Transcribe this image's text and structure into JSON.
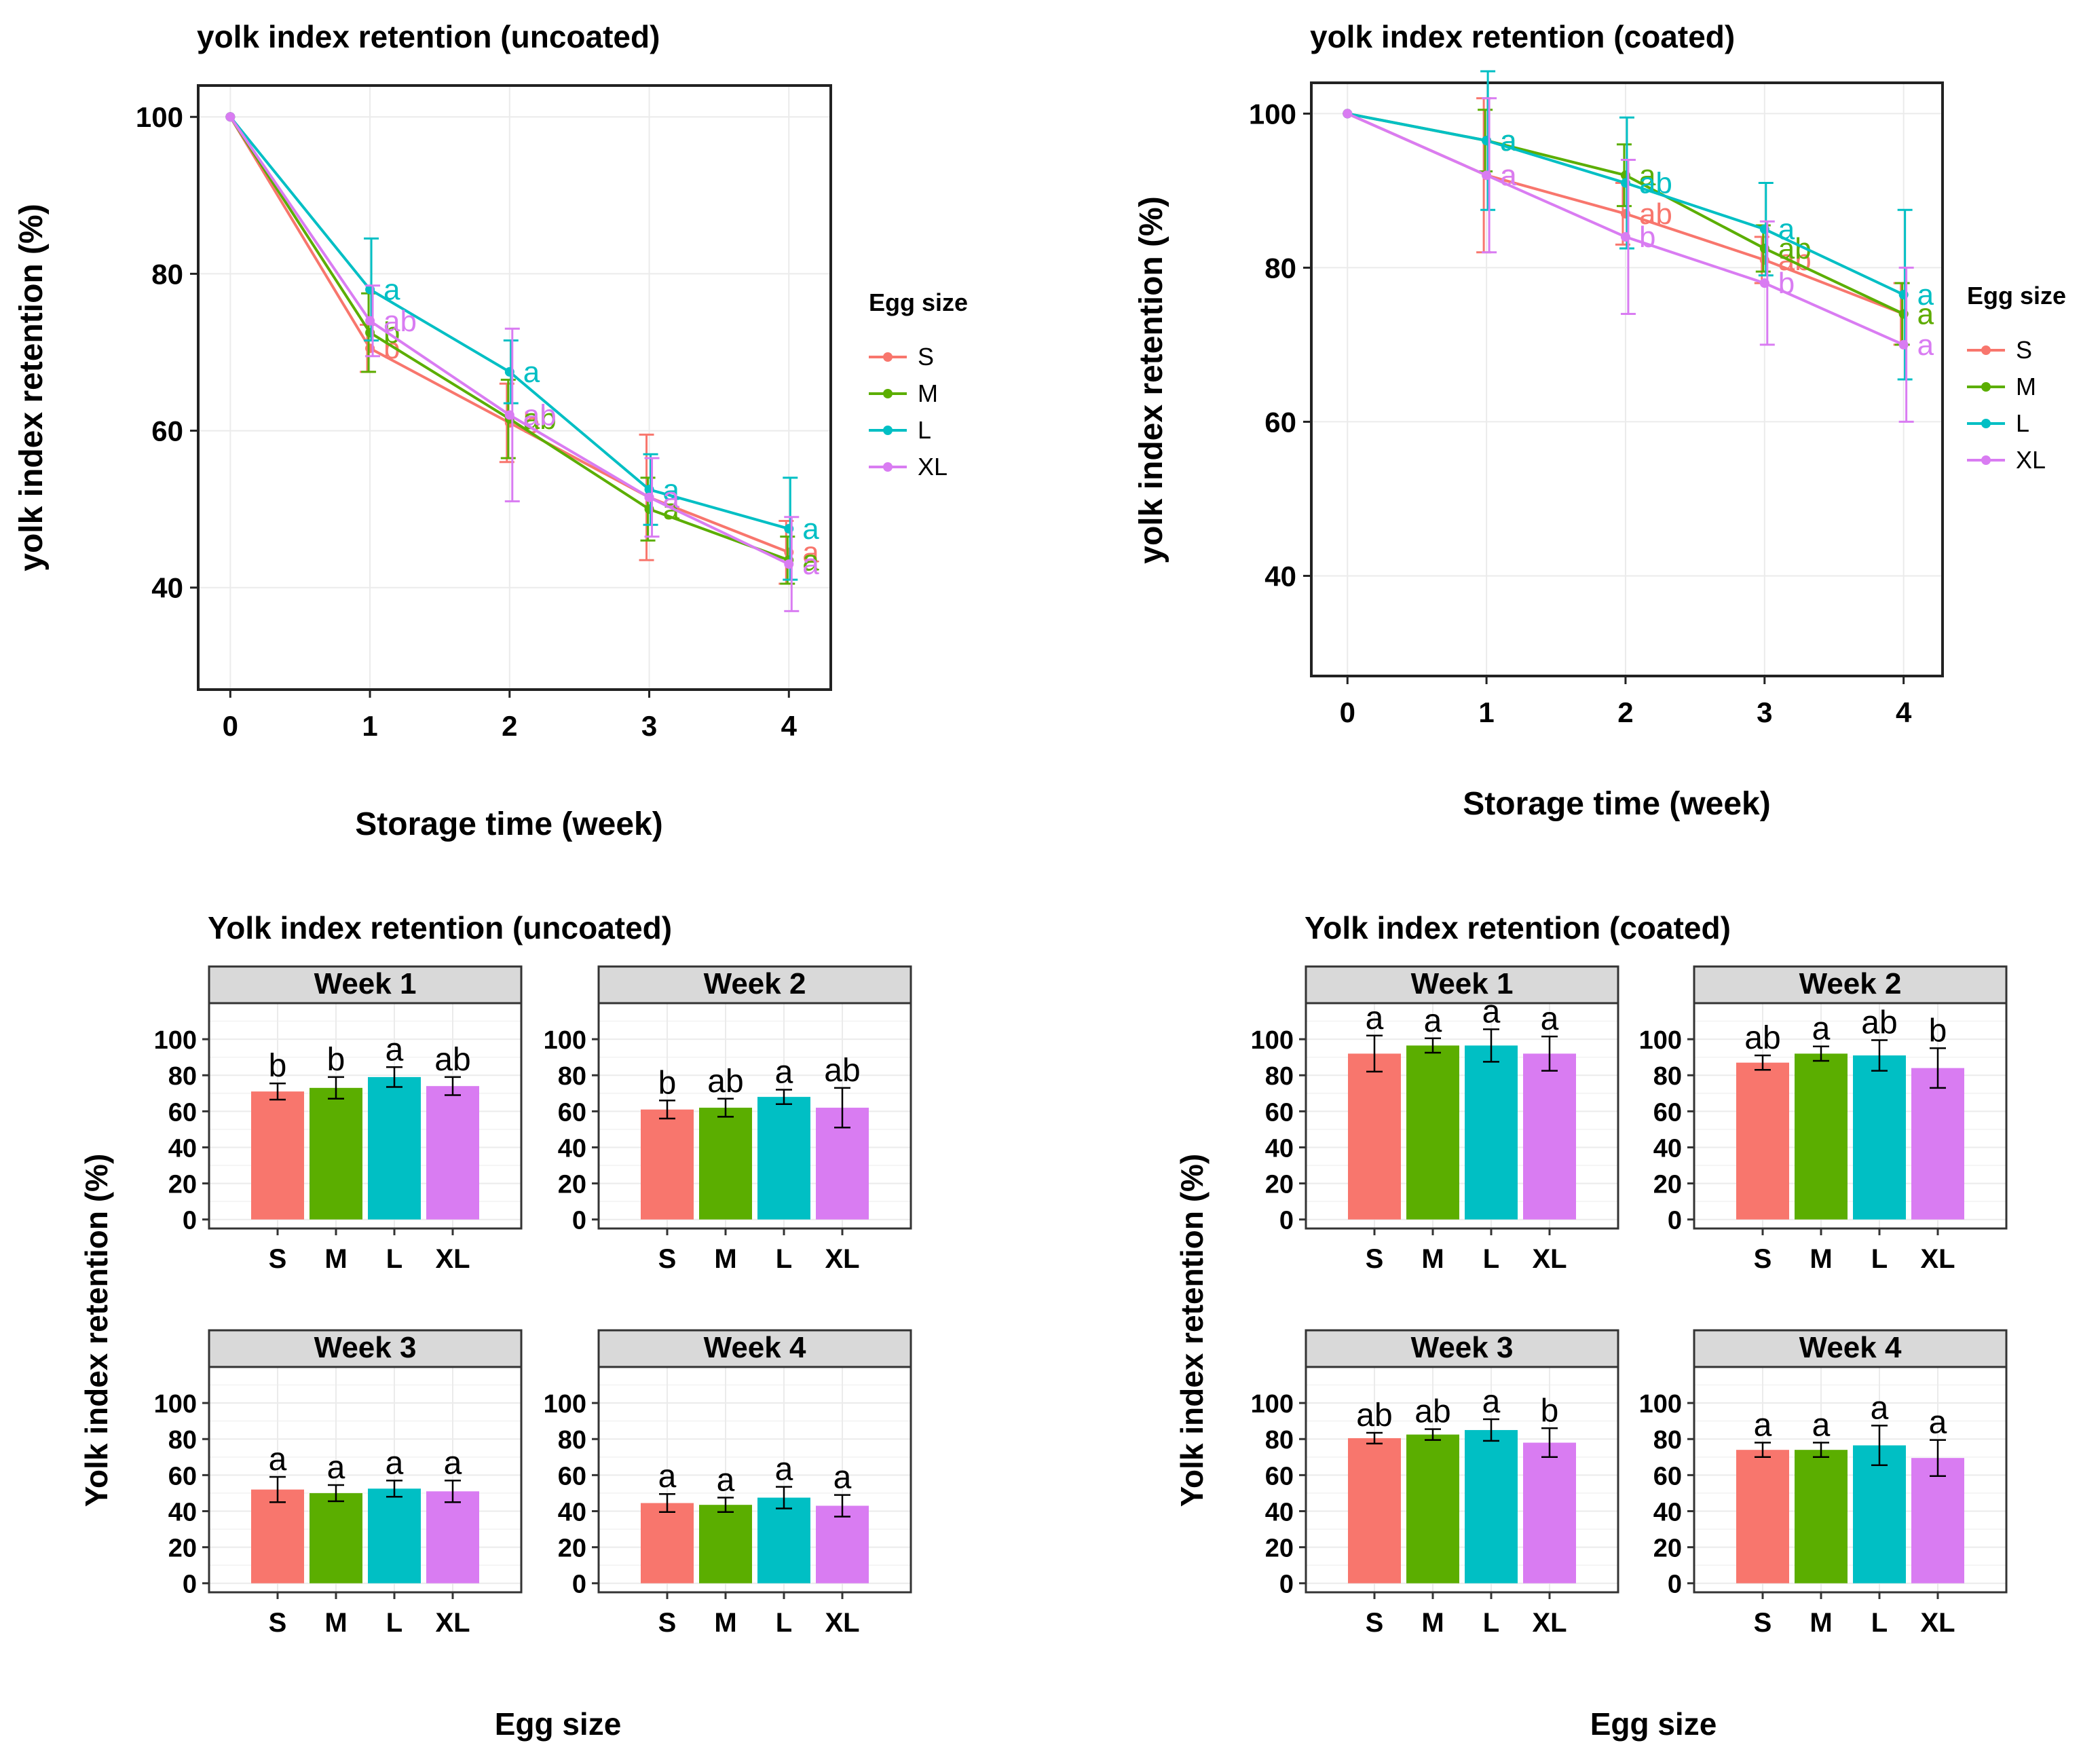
{
  "colors": {
    "S": "#F8766D",
    "M": "#5BAE00",
    "L": "#00BFC4",
    "XL": "#D97CF2",
    "strip": "#D9D9D9",
    "grid": "#EBEBEB"
  },
  "chart_data": [
    {
      "id": "line-uncoated",
      "type": "line",
      "title": "yolk index retention (uncoated)",
      "xlabel": "Storage time (week)",
      "ylabel": "yolk index retention (%)",
      "x": [
        0,
        1,
        2,
        3,
        4
      ],
      "x_ticks": [
        "0",
        "1",
        "2",
        "3",
        "4"
      ],
      "y_ticks": [
        "40",
        "60",
        "80",
        "100"
      ],
      "xlim": [
        -0.23,
        4.3
      ],
      "ylim": [
        27,
        104
      ],
      "legend_title": "Egg size",
      "series": [
        {
          "name": "S",
          "color": "#F8766D",
          "values": [
            100,
            70.5,
            61,
            51.5,
            44.5
          ],
          "err": [
            0,
            3,
            5,
            8,
            4
          ],
          "labels": [
            "",
            "b",
            "b",
            "a",
            "a"
          ]
        },
        {
          "name": "M",
          "color": "#5BAE00",
          "values": [
            100,
            72.5,
            61.5,
            50,
            43.5
          ],
          "err": [
            0,
            5,
            5,
            4,
            3
          ],
          "labels": [
            "",
            "b",
            "ab",
            "a",
            "a"
          ]
        },
        {
          "name": "L",
          "color": "#00BFC4",
          "values": [
            100,
            78,
            67.5,
            52.5,
            47.5
          ],
          "err": [
            0,
            6.5,
            4,
            4.5,
            6.5
          ],
          "labels": [
            "",
            "a",
            "a",
            "a",
            "a"
          ]
        },
        {
          "name": "XL",
          "color": "#D97CF2",
          "values": [
            100,
            74,
            62,
            51.5,
            43
          ],
          "err": [
            0,
            4.5,
            11,
            5,
            6
          ],
          "labels": [
            "",
            "ab",
            "ab",
            "a",
            "a"
          ]
        }
      ]
    },
    {
      "id": "line-coated",
      "type": "line",
      "title": "yolk index retention (coated)",
      "xlabel": "Storage time (week)",
      "ylabel": "yolk index retention (%)",
      "x": [
        0,
        1,
        2,
        3,
        4
      ],
      "x_ticks": [
        "0",
        "1",
        "2",
        "3",
        "4"
      ],
      "y_ticks": [
        "40",
        "60",
        "80",
        "100"
      ],
      "xlim": [
        -0.26,
        4.28
      ],
      "ylim": [
        27,
        104
      ],
      "legend_title": "Egg size",
      "series": [
        {
          "name": "S",
          "color": "#F8766D",
          "values": [
            100,
            92,
            87,
            81,
            74
          ],
          "err": [
            0,
            10,
            4,
            3,
            4
          ],
          "labels": [
            "",
            "a",
            "ab",
            "ab",
            "a"
          ]
        },
        {
          "name": "M",
          "color": "#5BAE00",
          "values": [
            100,
            96.5,
            92,
            82.5,
            74
          ],
          "err": [
            0,
            4,
            4,
            3,
            4
          ],
          "labels": [
            "",
            "a",
            "a",
            "ab",
            "a"
          ]
        },
        {
          "name": "L",
          "color": "#00BFC4",
          "values": [
            100,
            96.5,
            91,
            85,
            76.5
          ],
          "err": [
            0,
            9,
            8.5,
            6,
            11
          ],
          "labels": [
            "",
            "a",
            "ab",
            "a",
            "a"
          ]
        },
        {
          "name": "XL",
          "color": "#D97CF2",
          "values": [
            100,
            92,
            84,
            78,
            70
          ],
          "err": [
            0,
            10,
            10,
            8,
            10
          ],
          "labels": [
            "",
            "a",
            "b",
            "b",
            "a"
          ]
        }
      ]
    },
    {
      "id": "bars-uncoated",
      "type": "bar",
      "title": "Yolk index retention (uncoated)",
      "xlabel": "Egg size",
      "ylabel": "Yolk index retention (%)",
      "categories": [
        "S",
        "M",
        "L",
        "XL"
      ],
      "y_ticks": [
        "0",
        "20",
        "40",
        "60",
        "80",
        "100"
      ],
      "ylim": [
        -5,
        120
      ],
      "panels": [
        {
          "label": "Week 1",
          "values": [
            71,
            73,
            79,
            74
          ],
          "err": [
            4.5,
            6,
            5.5,
            5
          ],
          "letters": [
            "b",
            "b",
            "a",
            "ab"
          ]
        },
        {
          "label": "Week 2",
          "values": [
            61,
            62,
            68,
            62
          ],
          "err": [
            5,
            5,
            4,
            11
          ],
          "letters": [
            "b",
            "ab",
            "a",
            "ab"
          ]
        },
        {
          "label": "Week 3",
          "values": [
            52,
            50,
            52.5,
            51
          ],
          "err": [
            7,
            4.5,
            4.5,
            6
          ],
          "letters": [
            "a",
            "a",
            "a",
            "a"
          ]
        },
        {
          "label": "Week 4",
          "values": [
            44.5,
            43.5,
            47.5,
            43
          ],
          "err": [
            5,
            4,
            6,
            6
          ],
          "letters": [
            "a",
            "a",
            "a",
            "a"
          ]
        }
      ]
    },
    {
      "id": "bars-coated",
      "type": "bar",
      "title": "Yolk index retention (coated)",
      "xlabel": "Egg size",
      "ylabel": "Yolk index retention (%)",
      "categories": [
        "S",
        "M",
        "L",
        "XL"
      ],
      "y_ticks": [
        "0",
        "20",
        "40",
        "60",
        "80",
        "100"
      ],
      "ylim": [
        -5,
        120
      ],
      "panels": [
        {
          "label": "Week 1",
          "values": [
            92,
            96.5,
            96.5,
            92
          ],
          "err": [
            10,
            4,
            9,
            9.5
          ],
          "letters": [
            "a",
            "a",
            "a",
            "a"
          ]
        },
        {
          "label": "Week 2",
          "values": [
            87,
            92,
            91,
            84
          ],
          "err": [
            4,
            4,
            8.5,
            11
          ],
          "letters": [
            "ab",
            "a",
            "ab",
            "b"
          ]
        },
        {
          "label": "Week 3",
          "values": [
            80.5,
            82.5,
            85,
            78
          ],
          "err": [
            3,
            3,
            6,
            8
          ],
          "letters": [
            "ab",
            "ab",
            "a",
            "b"
          ]
        },
        {
          "label": "Week 4",
          "values": [
            74,
            74,
            76.5,
            69.5
          ],
          "err": [
            4,
            4,
            11,
            10
          ],
          "letters": [
            "a",
            "a",
            "a",
            "a"
          ]
        }
      ]
    }
  ]
}
